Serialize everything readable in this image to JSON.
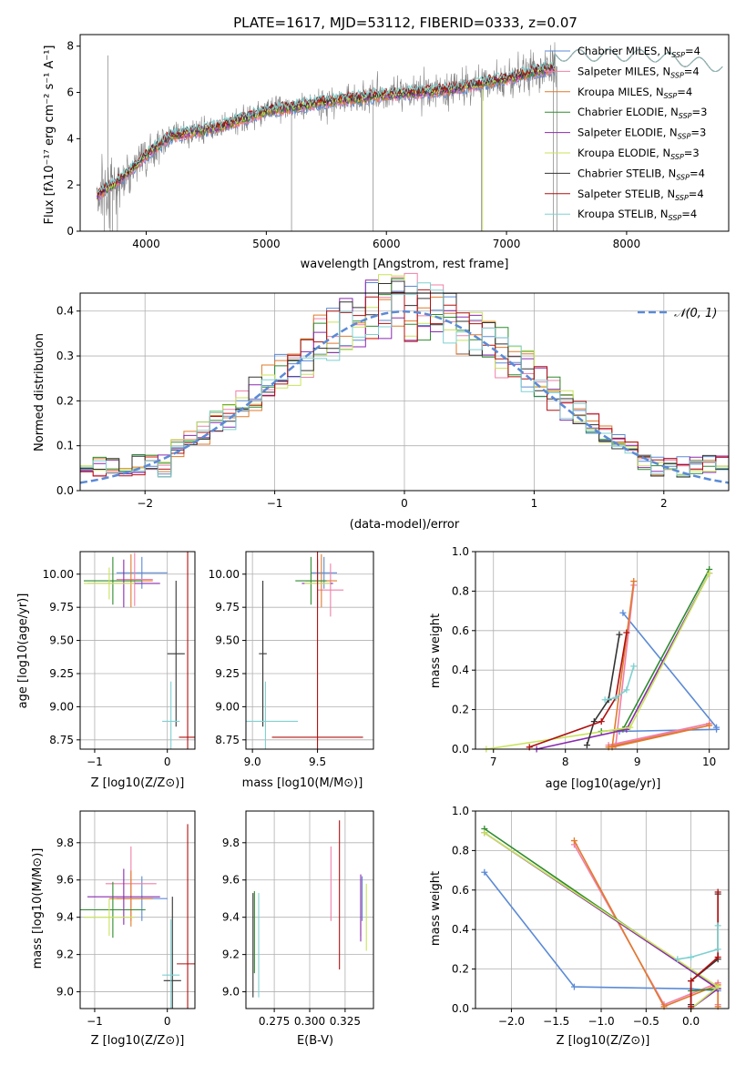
{
  "figure_title": "PLATE=1617, MJD=53112, FIBERID=0333, z=0.07",
  "palette": {
    "chabrier_miles": "#5b8ad6",
    "salpeter_miles": "#f07fa8",
    "kroupa_miles": "#e07a2a",
    "chabrier_elodie": "#2e8b2e",
    "salpeter_elodie": "#8a2ab0",
    "kroupa_elodie": "#c8e35a",
    "chabrier_stelib": "#333333",
    "salpeter_stelib": "#b01010",
    "kroupa_stelib": "#7fd0d0",
    "data_grey": "#808080",
    "gauss": "#5b8ad6"
  },
  "chart_data": [
    {
      "id": "spectrum",
      "type": "line",
      "xlabel": "wavelength [Angstrom, rest frame]",
      "ylabel": "Flux [fλ10⁻¹⁷ erg cm⁻² s⁻¹ A⁻¹]",
      "xlim": [
        3450,
        8850
      ],
      "ylim": [
        0,
        8.5
      ],
      "xticks": [
        4000,
        5000,
        6000,
        7000,
        8000
      ],
      "yticks": [
        0,
        2,
        4,
        6,
        8
      ],
      "grid": false,
      "legend_position": "right",
      "data_trend": {
        "x": [
          3600,
          3800,
          4000,
          4200,
          4600,
          5000,
          5500,
          6000,
          6500,
          7000,
          7400,
          7800,
          8200,
          8600
        ],
        "y": [
          1.6,
          2.3,
          3.3,
          4.1,
          4.5,
          5.2,
          5.6,
          5.9,
          6.1,
          6.6,
          7.1,
          7.6,
          7.8,
          7.4
        ]
      },
      "series": [
        {
          "name": "Chabrier MILES, N_SSP=4",
          "key": "chabrier_miles"
        },
        {
          "name": "Salpeter MILES, N_SSP=4",
          "key": "salpeter_miles"
        },
        {
          "name": "Kroupa MILES, N_SSP=4",
          "key": "kroupa_miles"
        },
        {
          "name": "Chabrier ELODIE, N_SSP=3",
          "key": "chabrier_elodie"
        },
        {
          "name": "Salpeter ELODIE, N_SSP=3",
          "key": "salpeter_elodie"
        },
        {
          "name": "Kroupa ELODIE, N_SSP=3",
          "key": "kroupa_elodie"
        },
        {
          "name": "Chabrier STELIB, N_SSP=4",
          "key": "chabrier_stelib"
        },
        {
          "name": "Salpeter STELIB, N_SSP=4",
          "key": "salpeter_stelib"
        },
        {
          "name": "Kroupa STELIB, N_SSP=4",
          "key": "kroupa_stelib"
        }
      ]
    },
    {
      "id": "residuals",
      "type": "bar",
      "xlabel": "(data-model)/error",
      "ylabel": "Normed distribution",
      "xlim": [
        -2.5,
        2.5
      ],
      "ylim": [
        0,
        0.44
      ],
      "xticks": [
        -2,
        -1,
        0,
        1,
        2
      ],
      "yticks": [
        0.0,
        0.1,
        0.2,
        0.3,
        0.4
      ],
      "grid": true,
      "legend": [
        "N(0,1)"
      ],
      "legend_position": "top-right",
      "bin_width": 0.1
    },
    {
      "id": "age_vs_Z",
      "type": "scatter",
      "xlabel": "Z [log10(Z/Z⊙)]",
      "ylabel": "age  [log10(age/yr)]",
      "xlim": [
        -1.2,
        0.38
      ],
      "ylim": [
        8.68,
        10.17
      ],
      "xticks": [
        -1,
        0
      ],
      "yticks": [
        8.75,
        9.0,
        9.25,
        9.5,
        9.75,
        10.0
      ],
      "grid": true
    },
    {
      "id": "age_vs_mass",
      "type": "scatter",
      "xlabel": "mass [log10(M/M⊙)]",
      "xlim": [
        8.95,
        9.93
      ],
      "ylim": [
        8.68,
        10.17
      ],
      "xticks": [
        9.0,
        9.5
      ],
      "yticks": [
        8.75,
        9.0,
        9.25,
        9.5,
        9.75,
        10.0
      ],
      "grid": true
    },
    {
      "id": "mass_weight_vs_age",
      "type": "line",
      "xlabel": "age  [log10(age/yr)]",
      "ylabel": "mass weight",
      "xlim": [
        6.75,
        10.27
      ],
      "ylim": [
        0,
        1.0
      ],
      "xticks": [
        7,
        8,
        9,
        10
      ],
      "yticks": [
        0.0,
        0.2,
        0.4,
        0.6,
        0.8,
        1.0
      ],
      "grid": true
    },
    {
      "id": "mass_vs_Z",
      "type": "scatter",
      "xlabel": "Z [log10(Z/Z⊙)]",
      "ylabel": "mass [log10(M/M⊙)]",
      "xlim": [
        -1.2,
        0.38
      ],
      "ylim": [
        8.91,
        9.97
      ],
      "xticks": [
        -1,
        0
      ],
      "yticks": [
        9.0,
        9.2,
        9.4,
        9.6,
        9.8
      ],
      "grid": true
    },
    {
      "id": "mass_vs_EBV",
      "type": "scatter",
      "xlabel": "E(B-V)",
      "xlim": [
        0.255,
        0.345
      ],
      "ylim": [
        8.91,
        9.97
      ],
      "xticks": [
        0.275,
        0.3,
        0.325
      ],
      "xtick_labels": [
        "0.275",
        "0.300",
        "0.325"
      ],
      "yticks": [
        9.0,
        9.2,
        9.4,
        9.6,
        9.8
      ],
      "grid": true
    },
    {
      "id": "mass_weight_vs_Z",
      "type": "line",
      "xlabel": "Z [log10(Z/Z⊙)]",
      "ylabel": "mass weight",
      "xlim": [
        -2.4,
        0.42
      ],
      "ylim": [
        0,
        1.0
      ],
      "xticks": [
        -2.0,
        -1.5,
        -1.0,
        -0.5,
        0.0
      ],
      "yticks": [
        0.0,
        0.2,
        0.4,
        0.6,
        0.8,
        1.0
      ],
      "grid": true
    }
  ],
  "mass_weights": {
    "chabrier_miles": {
      "age": [
        8.8,
        10.1,
        10.1,
        8.75
      ],
      "Z": [
        -2.3,
        -1.3,
        0.0,
        0.3
      ],
      "w": [
        0.69,
        0.11,
        0.1,
        0.09
      ]
    },
    "salpeter_miles": {
      "age": [
        8.95,
        8.7,
        10.0,
        8.6
      ],
      "Z": [
        -1.3,
        -0.3,
        0.3,
        0.3
      ],
      "w": [
        0.83,
        0.02,
        0.13,
        0.02
      ]
    },
    "kroupa_miles": {
      "age": [
        8.95,
        8.65,
        10.0,
        8.6
      ],
      "Z": [
        -1.3,
        -0.3,
        0.3,
        0.3
      ],
      "w": [
        0.85,
        0.01,
        0.12,
        0.01
      ]
    },
    "chabrier_elodie": {
      "age": [
        10.0,
        8.8,
        8.5
      ],
      "Z": [
        -2.3,
        0.3,
        0.0
      ],
      "w": [
        0.91,
        0.1,
        0.09
      ]
    },
    "salpeter_elodie": {
      "age": [
        10.0,
        8.85,
        7.6
      ],
      "Z": [
        -2.3,
        0.3,
        0.0
      ],
      "w": [
        0.89,
        0.1,
        0.0
      ]
    },
    "kroupa_elodie": {
      "age": [
        10.0,
        8.9,
        6.9
      ],
      "Z": [
        -2.3,
        0.3,
        0.0
      ],
      "w": [
        0.89,
        0.11,
        0.0
      ]
    },
    "chabrier_stelib": {
      "age": [
        8.75,
        8.6,
        8.4,
        8.3
      ],
      "Z": [
        0.3,
        0.3,
        0.0,
        0.0
      ],
      "w": [
        0.58,
        0.25,
        0.14,
        0.02
      ]
    },
    "salpeter_stelib": {
      "age": [
        8.85,
        8.7,
        8.5,
        7.5
      ],
      "Z": [
        0.3,
        0.3,
        0.0,
        0.0
      ],
      "w": [
        0.59,
        0.26,
        0.14,
        0.01
      ]
    },
    "kroupa_stelib": {
      "age": [
        8.95,
        8.85,
        8.7,
        8.55
      ],
      "Z": [
        0.3,
        0.3,
        0.0,
        -0.15
      ],
      "w": [
        0.42,
        0.3,
        0.26,
        0.25
      ]
    }
  },
  "ssp_errorbars": {
    "age_Z": [
      {
        "key": "chabrier_miles",
        "x": -0.35,
        "xe": 0.35,
        "y": 10.01,
        "ye": 0.12
      },
      {
        "key": "salpeter_miles",
        "x": -0.45,
        "xe": 0.25,
        "y": 9.96,
        "ye": 0.2
      },
      {
        "key": "kroupa_miles",
        "x": -0.5,
        "xe": 0.3,
        "y": 9.95,
        "ye": 0.2
      },
      {
        "key": "chabrier_elodie",
        "x": -0.75,
        "xe": 0.4,
        "y": 9.95,
        "ye": 0.18
      },
      {
        "key": "salpeter_elodie",
        "x": -0.6,
        "xe": 0.5,
        "y": 9.93,
        "ye": 0.18
      },
      {
        "key": "kroupa_elodie",
        "x": -0.8,
        "xe": 0.35,
        "y": 9.93,
        "ye": 0.12
      },
      {
        "key": "chabrier_stelib",
        "x": 0.12,
        "xe": 0.12,
        "y": 9.4,
        "ye": 0.55
      },
      {
        "key": "salpeter_stelib",
        "x": 0.28,
        "xe": 0.12,
        "y": 8.77,
        "ye": 1.4
      },
      {
        "key": "kroupa_stelib",
        "x": 0.05,
        "xe": 0.12,
        "y": 8.89,
        "ye": 0.3
      }
    ],
    "age_mass": [
      {
        "key": "chabrier_miles",
        "x": 9.55,
        "xe": 0.1,
        "y": 10.01,
        "ye": 0.12
      },
      {
        "key": "salpeter_miles",
        "x": 9.6,
        "xe": 0.1,
        "y": 9.88,
        "ye": 0.2
      },
      {
        "key": "kroupa_miles",
        "x": 9.53,
        "xe": 0.12,
        "y": 9.95,
        "ye": 0.2
      },
      {
        "key": "chabrier_elodie",
        "x": 9.45,
        "xe": 0.12,
        "y": 9.95,
        "ye": 0.18
      },
      {
        "key": "salpeter_elodie",
        "x": 9.5,
        "xe": 0.12,
        "y": 9.93,
        "ye": 0.18
      },
      {
        "key": "kroupa_elodie",
        "x": 9.5,
        "xe": 0.1,
        "y": 9.93,
        "ye": 0.12
      },
      {
        "key": "chabrier_stelib",
        "x": 9.08,
        "xe": 0.03,
        "y": 9.4,
        "ye": 0.55
      },
      {
        "key": "salpeter_stelib",
        "x": 9.5,
        "xe": 0.35,
        "y": 8.77,
        "ye": 1.4
      },
      {
        "key": "kroupa_stelib",
        "x": 9.1,
        "xe": 0.25,
        "y": 8.89,
        "ye": 0.3
      }
    ],
    "mass_Z": [
      {
        "key": "chabrier_miles",
        "x": -0.35,
        "xe": 0.35,
        "y": 9.5,
        "ye": 0.12
      },
      {
        "key": "salpeter_miles",
        "x": -0.5,
        "xe": 0.35,
        "y": 9.58,
        "ye": 0.2
      },
      {
        "key": "kroupa_miles",
        "x": -0.5,
        "xe": 0.3,
        "y": 9.5,
        "ye": 0.15
      },
      {
        "key": "chabrier_elodie",
        "x": -0.75,
        "xe": 0.45,
        "y": 9.44,
        "ye": 0.15
      },
      {
        "key": "salpeter_elodie",
        "x": -0.6,
        "xe": 0.5,
        "y": 9.51,
        "ye": 0.15
      },
      {
        "key": "kroupa_elodie",
        "x": -0.8,
        "xe": 0.35,
        "y": 9.4,
        "ye": 0.1
      },
      {
        "key": "chabrier_stelib",
        "x": 0.07,
        "xe": 0.12,
        "y": 9.06,
        "ye": 0.45
      },
      {
        "key": "salpeter_stelib",
        "x": 0.28,
        "xe": 0.15,
        "y": 9.15,
        "ye": 0.75
      },
      {
        "key": "kroupa_stelib",
        "x": 0.05,
        "xe": 0.12,
        "y": 9.09,
        "ye": 0.3
      }
    ],
    "mass_EBV": [
      {
        "key": "chabrier_miles",
        "x": 0.337,
        "y": 9.5,
        "ye": 0.12
      },
      {
        "key": "salpeter_miles",
        "x": 0.315,
        "y": 9.58,
        "ye": 0.2
      },
      {
        "key": "kroupa_miles",
        "x": 0.336,
        "y": 9.45,
        "ye": 0.15
      },
      {
        "key": "chabrier_elodie",
        "x": 0.261,
        "y": 9.32,
        "ye": 0.22
      },
      {
        "key": "salpeter_elodie",
        "x": 0.336,
        "y": 9.45,
        "ye": 0.18
      },
      {
        "key": "kroupa_elodie",
        "x": 0.34,
        "y": 9.4,
        "ye": 0.18
      },
      {
        "key": "chabrier_stelib",
        "x": 0.26,
        "y": 9.25,
        "ye": 0.28
      },
      {
        "key": "salpeter_stelib",
        "x": 0.321,
        "y": 9.52,
        "ye": 0.4
      },
      {
        "key": "kroupa_stelib",
        "x": 0.264,
        "y": 9.25,
        "ye": 0.28
      }
    ]
  }
}
